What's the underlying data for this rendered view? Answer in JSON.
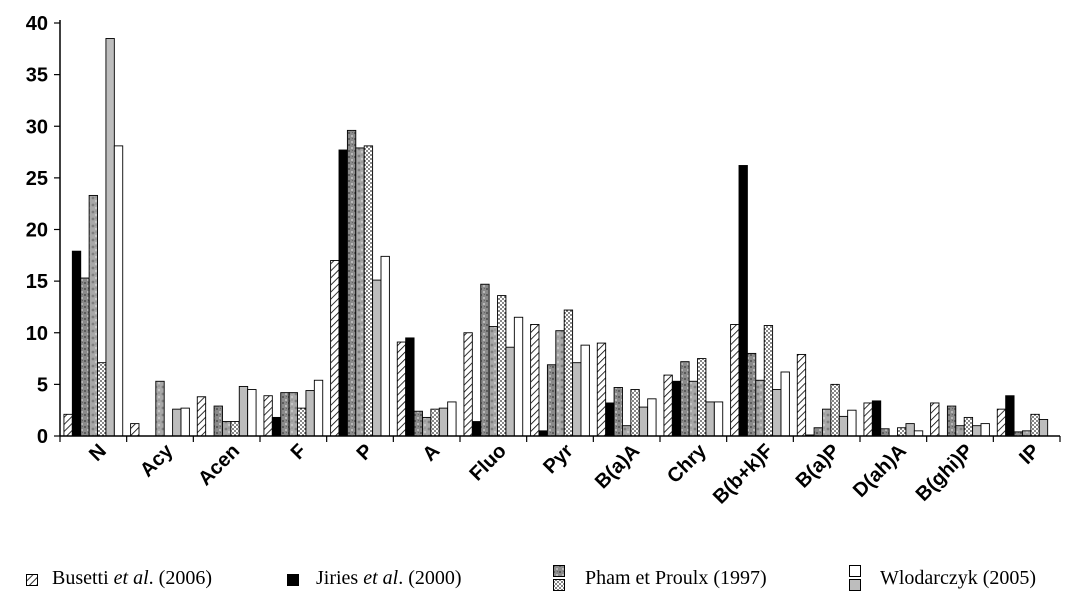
{
  "chart_data": {
    "type": "bar",
    "categories": [
      "N",
      "Acy",
      "Acen",
      "F",
      "P",
      "A",
      "Fluo",
      "Pyr",
      "B(a)A",
      "Chry",
      "B(b+k)F",
      "B(a)P",
      "D(ah)A",
      "B(ghi)P",
      "IP"
    ],
    "ylim": [
      0,
      40
    ],
    "yticks": [
      0,
      5,
      10,
      15,
      20,
      25,
      30,
      35,
      40
    ],
    "series": [
      {
        "name": "Busetti et al. (2006)",
        "pattern": "diagonal-hatch",
        "values": [
          2.1,
          1.2,
          3.8,
          3.9,
          17.0,
          9.1,
          10.0,
          10.8,
          9.0,
          5.9,
          10.8,
          7.9,
          3.2,
          3.2,
          2.6
        ]
      },
      {
        "name": "Jiries et al. (2000)",
        "pattern": "solid-black",
        "values": [
          17.9,
          0,
          0,
          1.8,
          27.7,
          9.5,
          1.4,
          0.5,
          3.2,
          5.3,
          26.2,
          0.1,
          3.4,
          0,
          3.9
        ]
      },
      {
        "name": "Pham et Proulx (1997) A",
        "pattern": "textured-gray",
        "values": [
          15.3,
          0,
          2.9,
          4.2,
          29.6,
          2.4,
          14.7,
          6.9,
          4.7,
          7.2,
          8.0,
          0.8,
          0.7,
          2.9,
          0.4
        ]
      },
      {
        "name": "Pham et Proulx (1997) B",
        "pattern": "mottled-gray",
        "values": [
          23.3,
          5.3,
          1.4,
          4.2,
          27.9,
          1.8,
          10.6,
          10.2,
          1.0,
          5.3,
          5.4,
          2.6,
          0,
          1.0,
          0.5
        ]
      },
      {
        "name": "Wlodarczyk (2005) A",
        "pattern": "dotted",
        "values": [
          7.1,
          0,
          1.4,
          2.7,
          28.1,
          2.6,
          13.6,
          12.2,
          4.5,
          7.5,
          10.7,
          5.0,
          0.8,
          1.8,
          2.1
        ]
      },
      {
        "name": "Wlodarczyk (2005) B",
        "pattern": "light-gray",
        "values": [
          38.5,
          2.6,
          4.8,
          4.4,
          15.1,
          2.7,
          8.6,
          7.1,
          2.8,
          3.3,
          4.5,
          1.9,
          1.2,
          1.0,
          1.6
        ]
      },
      {
        "name": "Wlodarczyk (2005) C",
        "pattern": "white",
        "values": [
          28.1,
          2.7,
          4.5,
          5.4,
          17.4,
          3.3,
          11.5,
          8.8,
          3.6,
          3.3,
          6.2,
          2.5,
          0.5,
          1.2,
          0
        ]
      }
    ]
  },
  "legend": {
    "items": [
      {
        "prefix": "Busetti ",
        "italic": "et al",
        "suffix": ". (2006)",
        "symbol": "diagonal-hatch"
      },
      {
        "prefix": "Jiries ",
        "italic": "et al",
        "suffix": ". (2000)",
        "symbol": "solid-black"
      },
      {
        "prefix": "Pham et Proulx (1997)",
        "italic": "",
        "suffix": "",
        "symbol": "gray-and-dotted"
      },
      {
        "prefix": "Wlodarczyk (2005)",
        "italic": "",
        "suffix": "",
        "symbol": "white-and-gray"
      }
    ]
  },
  "colors": {
    "axis": "#000000",
    "black": "#000000",
    "gray_dark": "#8a8a8a",
    "gray_mid": "#a8a8a8",
    "gray_light": "#bdbdbd",
    "white": "#ffffff"
  }
}
